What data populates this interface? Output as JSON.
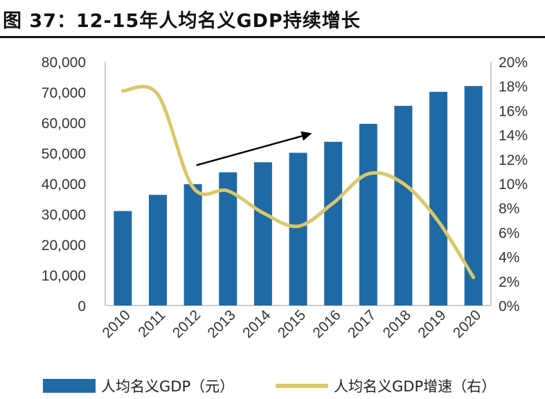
{
  "title": "图 37：12-15年人均名义GDP持续增长",
  "colors": {
    "bar": "#1f6aa5",
    "line": "#d9c86a",
    "arrow": "#000000",
    "axis": "#cccccc",
    "text": "#333333"
  },
  "chart_data": {
    "type": "bar",
    "categories": [
      "2010",
      "2011",
      "2012",
      "2013",
      "2014",
      "2015",
      "2016",
      "2017",
      "2018",
      "2019",
      "2020"
    ],
    "series": [
      {
        "name": "人均名义GDP（元）",
        "axis": "left",
        "type": "bar",
        "values": [
          31000,
          36300,
          39800,
          43700,
          47000,
          50100,
          53700,
          59600,
          65500,
          70100,
          72000
        ]
      },
      {
        "name": "人均名义GDP增速（右）",
        "axis": "right",
        "type": "line",
        "values": [
          17.6,
          17.3,
          9.7,
          9.4,
          7.6,
          6.5,
          8.4,
          10.8,
          10.0,
          6.9,
          2.3
        ]
      }
    ],
    "y_left": {
      "min": 0,
      "max": 80000,
      "ticks": [
        "0",
        "10,000",
        "20,000",
        "30,000",
        "40,000",
        "50,000",
        "60,000",
        "70,000",
        "80,000"
      ]
    },
    "y_right": {
      "min": 0,
      "max": 20,
      "ticks": [
        "0%",
        "2%",
        "4%",
        "6%",
        "8%",
        "10%",
        "12%",
        "14%",
        "16%",
        "18%",
        "20%"
      ]
    },
    "annotation": {
      "type": "arrow",
      "from": {
        "x": "2012",
        "y": 46000
      },
      "to": {
        "x": "2015",
        "y": 56500
      }
    },
    "legend_position": "bottom"
  },
  "legend": {
    "bar_label": "人均名义GDP（元）",
    "line_label": "人均名义GDP增速（右）"
  }
}
